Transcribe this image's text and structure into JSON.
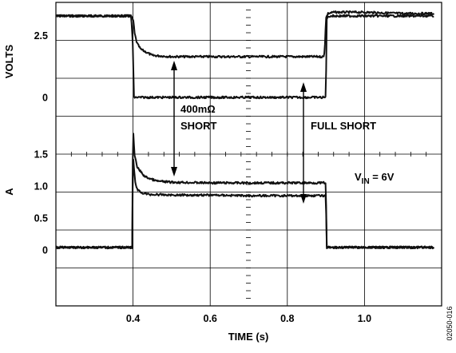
{
  "chart_data": {
    "type": "line",
    "title": "",
    "xlabel": "TIME (s)",
    "xlim": [
      0.2,
      1.2
    ],
    "x_ticks": [
      "0.4",
      "0.6",
      "0.8",
      "1.0"
    ],
    "grid": true,
    "upper_panel": {
      "ylabel": "VOLTS",
      "ylim": [
        -2.3,
        3.85
      ],
      "y_ticks": [
        "2.5",
        "0"
      ]
    },
    "lower_panel": {
      "ylabel": "A",
      "ylim": [
        -0.875,
        1.5
      ],
      "y_ticks": [
        "1.5",
        "1.0",
        "0.5",
        "0"
      ]
    },
    "series": [
      {
        "panel": "upper",
        "x": [
          0.2,
          0.3,
          0.395,
          0.401,
          0.404,
          0.41,
          0.42,
          0.45,
          0.5,
          0.6,
          0.7,
          0.8,
          0.895,
          0.898,
          0.9,
          0.905,
          0.92,
          0.95,
          1.0,
          1.1,
          1.18
        ],
        "values": [
          3.3,
          3.3,
          3.3,
          3.1,
          2.6,
          2.2,
          1.95,
          1.7,
          1.65,
          1.65,
          1.65,
          1.65,
          1.65,
          2.3,
          3.2,
          3.4,
          3.45,
          3.45,
          3.45,
          3.4,
          3.4
        ]
      },
      {
        "panel": "upper",
        "x": [
          0.2,
          0.395,
          0.4,
          0.402,
          0.5,
          0.6,
          0.7,
          0.8,
          0.9,
          0.902,
          0.91,
          1.0,
          1.1,
          1.18
        ],
        "values": [
          3.3,
          3.3,
          2.0,
          0.0,
          0.0,
          0.0,
          0.0,
          0.0,
          0.0,
          3.2,
          3.3,
          3.3,
          3.3,
          3.3
        ]
      },
      {
        "panel": "lower",
        "x": [
          0.2,
          0.3,
          0.398,
          0.4,
          0.401,
          0.404,
          0.41,
          0.43,
          0.46,
          0.5,
          0.6,
          0.7,
          0.8,
          0.9,
          0.902,
          1.0,
          1.1,
          1.18
        ],
        "values": [
          0.04,
          0.04,
          0.04,
          2.15,
          1.8,
          1.5,
          1.3,
          1.15,
          1.08,
          1.06,
          1.05,
          1.05,
          1.05,
          1.05,
          0.04,
          0.04,
          0.04,
          0.04
        ]
      },
      {
        "panel": "lower",
        "x": [
          0.2,
          0.3,
          0.398,
          0.4,
          0.402,
          0.405,
          0.41,
          0.42,
          0.44,
          0.5,
          0.6,
          0.7,
          0.8,
          0.9,
          0.902,
          1.0,
          1.1,
          1.18
        ],
        "values": [
          0.04,
          0.04,
          0.04,
          1.5,
          1.3,
          1.1,
          0.95,
          0.9,
          0.87,
          0.86,
          0.86,
          0.85,
          0.85,
          0.85,
          0.04,
          0.04,
          0.04,
          0.04
        ]
      }
    ],
    "annotations": [
      {
        "id": "short",
        "lines": [
          "400mΩ",
          "SHORT"
        ]
      },
      {
        "id": "full",
        "lines": [
          "FULL SHORT"
        ]
      },
      {
        "id": "vin",
        "main": "V",
        "sub": "IN",
        "rest": " = 6V"
      }
    ],
    "figure_id": "02050-016"
  }
}
